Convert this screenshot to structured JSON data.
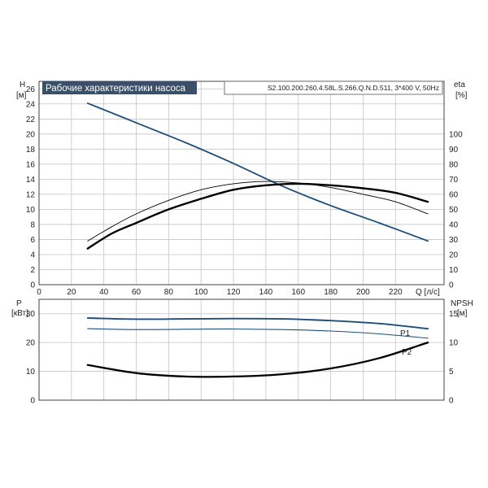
{
  "chart_data": [
    {
      "type": "line",
      "title": "Рабочие характеристики насоса",
      "subtitle": "S2.100.200.260.4.58L.S.266.Q.N.D.511, 3*400 V, 50Hz",
      "xlabel": "Q [л/с]",
      "ylabel": "H",
      "ylabel_unit": "[м]",
      "y2label": "eta",
      "y2label_unit": "[%]",
      "xlim": [
        0,
        250
      ],
      "ylim": [
        0,
        27
      ],
      "y2lim": [
        0,
        135
      ],
      "x_ticks": [
        "0",
        "20",
        "40",
        "60",
        "80",
        "100",
        "120",
        "140",
        "160",
        "180",
        "200",
        "220"
      ],
      "y_ticks": [
        "0",
        "2",
        "4",
        "6",
        "8",
        "10",
        "12",
        "14",
        "16",
        "18",
        "20",
        "22",
        "24",
        "26"
      ],
      "y2_ticks": [
        "0",
        "10",
        "20",
        "30",
        "40",
        "50",
        "60",
        "70",
        "80",
        "90",
        "100"
      ],
      "grid": true,
      "colors": {
        "head": "#1f4e79",
        "eta": "#000000"
      },
      "series": [
        {
          "key": "head",
          "axis": "left",
          "x": [
            30,
            60,
            90,
            120,
            150,
            180,
            210,
            240
          ],
          "y": [
            24.1,
            21.5,
            18.9,
            16.1,
            13.1,
            10.5,
            8.2,
            5.8
          ]
        },
        {
          "key": "eta1",
          "axis": "right",
          "x": [
            30,
            45,
            60,
            80,
            100,
            120,
            140,
            160,
            180,
            200,
            220,
            240
          ],
          "y": [
            29,
            38.5,
            47,
            56,
            63,
            67,
            68.5,
            67.5,
            64.5,
            60,
            55,
            47
          ]
        },
        {
          "key": "eta2",
          "axis": "right",
          "x": [
            30,
            45,
            60,
            80,
            100,
            120,
            140,
            160,
            180,
            200,
            220,
            240
          ],
          "y": [
            24,
            34,
            41,
            50,
            57,
            63,
            66,
            67,
            66,
            64,
            61,
            55
          ]
        }
      ]
    },
    {
      "type": "line",
      "ylabel": "P",
      "ylabel_unit": "[кВт]",
      "y2label": "NPSH",
      "y2label_unit": "[м]",
      "xlim": [
        0,
        250
      ],
      "ylim": [
        0,
        35
      ],
      "y2lim": [
        0,
        17.5
      ],
      "y_ticks": [
        "0",
        "10",
        "20",
        "30"
      ],
      "y2_ticks": [
        "0",
        "5",
        "10",
        "15"
      ],
      "grid": true,
      "colors": {
        "power": "#1f4e79",
        "npsh": "#000000"
      },
      "series": [
        {
          "name": "P1",
          "axis": "left",
          "x": [
            30,
            60,
            90,
            120,
            150,
            180,
            210,
            240
          ],
          "y": [
            28.5,
            28.1,
            28.2,
            28.3,
            28.2,
            27.6,
            26.6,
            24.8
          ]
        },
        {
          "name": "P2",
          "axis": "left",
          "x": [
            30,
            60,
            90,
            120,
            150,
            180,
            210,
            240
          ],
          "y": [
            24.8,
            24.5,
            24.6,
            24.7,
            24.5,
            24.0,
            23.0,
            21.5
          ]
        },
        {
          "key": "npsh",
          "axis": "right",
          "x": [
            30,
            60,
            90,
            120,
            150,
            180,
            210,
            240
          ],
          "y": [
            6.1,
            4.7,
            4.1,
            4.1,
            4.5,
            5.5,
            7.3,
            10.0
          ]
        }
      ]
    }
  ]
}
